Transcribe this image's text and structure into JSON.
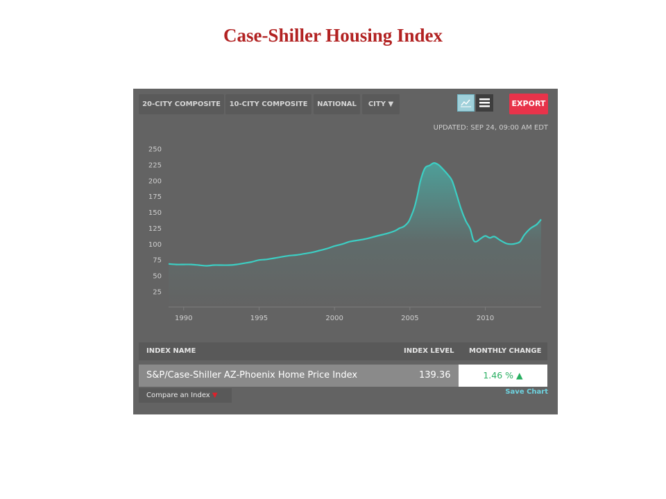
{
  "page": {
    "title": "Case-Shiller Housing Index"
  },
  "toolbar": {
    "tabs": [
      "20-CITY COMPOSITE",
      "10-CITY COMPOSITE",
      "NATIONAL",
      "CITY ▼"
    ],
    "export_label": "EXPORT",
    "updated": "UPDATED: SEP 24, 09:00 AM EDT"
  },
  "colors": {
    "line": "#3ccfc4",
    "export": "#e8334a",
    "positive": "#27ae60",
    "down_arrow": "#e0202a"
  },
  "chart_data": {
    "type": "area",
    "title": "",
    "xlabel": "",
    "ylabel": "",
    "ylim": [
      25,
      250
    ],
    "xlim": [
      1989,
      2013.7
    ],
    "yticks": [
      "250",
      "225",
      "200",
      "175",
      "150",
      "125",
      "100",
      "75",
      "50",
      "25"
    ],
    "xticks": [
      "1990",
      "1995",
      "2000",
      "2005",
      "2010"
    ],
    "grid": false,
    "series": [
      {
        "name": "",
        "x": [
          1989.0,
          1989.5,
          1990.0,
          1990.5,
          1991.0,
          1991.5,
          1992.0,
          1992.5,
          1993.0,
          1993.5,
          1994.0,
          1994.5,
          1995.0,
          1995.5,
          1996.0,
          1996.5,
          1997.0,
          1997.5,
          1998.0,
          1998.5,
          1999.0,
          1999.5,
          2000.0,
          2000.5,
          2001.0,
          2001.5,
          2002.0,
          2002.5,
          2003.0,
          2003.5,
          2004.0,
          2004.3,
          2004.6,
          2004.9,
          2005.1,
          2005.3,
          2005.5,
          2005.7,
          2006.0,
          2006.3,
          2006.6,
          2006.9,
          2007.2,
          2007.5,
          2007.8,
          2008.1,
          2008.4,
          2008.7,
          2009.0,
          2009.2,
          2009.4,
          2009.7,
          2010.0,
          2010.3,
          2010.6,
          2011.0,
          2011.4,
          2011.7,
          2012.0,
          2012.3,
          2012.6,
          2013.0,
          2013.4,
          2013.7
        ],
        "values": [
          69,
          68,
          68,
          68,
          67,
          66,
          67,
          67,
          67,
          68,
          70,
          72,
          75,
          76,
          78,
          80,
          82,
          83,
          85,
          87,
          90,
          93,
          97,
          100,
          104,
          106,
          108,
          111,
          114,
          117,
          121,
          125,
          128,
          135,
          145,
          158,
          177,
          200,
          220,
          224,
          228,
          225,
          218,
          210,
          200,
          178,
          155,
          137,
          124,
          107,
          104,
          109,
          113,
          110,
          112,
          106,
          101,
          100,
          101,
          104,
          115,
          125,
          131,
          139
        ]
      }
    ]
  },
  "table": {
    "headers": {
      "name": "INDEX NAME",
      "level": "INDEX LEVEL",
      "change": "MONTHLY CHANGE"
    },
    "row": {
      "name": "S&P/Case-Shiller AZ-Phoenix Home Price Index",
      "level": "139.36",
      "change": "1.46 %",
      "change_arrow": "▲"
    }
  },
  "footer": {
    "compare_label": "Compare an Index",
    "compare_arrow": "▼",
    "save_label": "Save Chart"
  }
}
